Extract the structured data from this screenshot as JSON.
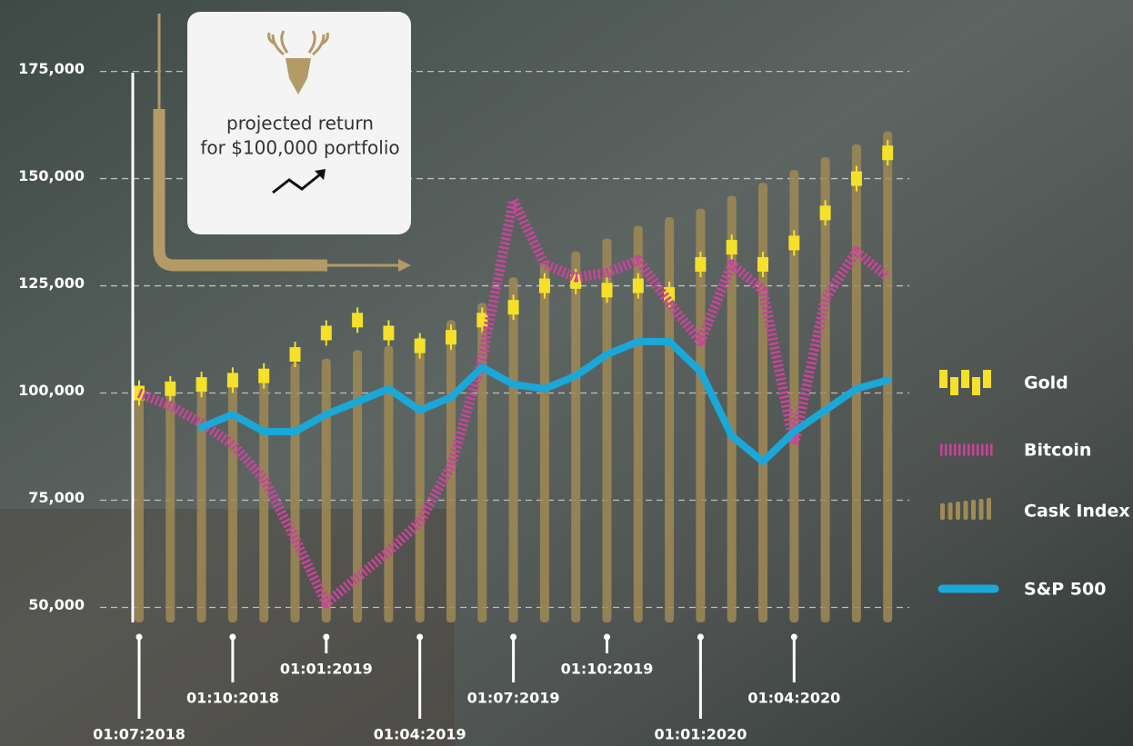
{
  "chart_data": {
    "type": "combo",
    "annotation": [
      "projected return",
      "for $100,000 portfolio"
    ],
    "categories": [
      "01:07:2018",
      null,
      null,
      "01:10:2018",
      null,
      null,
      "01:01:2019",
      null,
      null,
      "01:04:2019",
      null,
      null,
      "01:07:2019",
      null,
      null,
      "01:10:2019",
      null,
      null,
      "01:01:2020",
      null,
      null,
      "01:04:2020",
      null,
      null,
      null
    ],
    "ylim": [
      46500,
      180000
    ],
    "yticks": [
      {
        "value": 50000,
        "label": "50,000"
      },
      {
        "value": 75000,
        "label": "75,000"
      },
      {
        "value": 100000,
        "label": "100,000"
      },
      {
        "value": 125000,
        "label": "125,000"
      },
      {
        "value": 150000,
        "label": "150,000"
      },
      {
        "value": 175000,
        "label": "175,000"
      }
    ],
    "grid": true,
    "legend": "right",
    "series": [
      {
        "name": "Gold",
        "type": "candle",
        "color": "#f5e02a",
        "values": [
          100000,
          101000,
          102000,
          103000,
          104000,
          109000,
          114000,
          117000,
          114000,
          111000,
          113000,
          117000,
          120000,
          125000,
          126000,
          124000,
          125000,
          123000,
          130000,
          134000,
          130000,
          135000,
          142000,
          150000,
          156000
        ]
      },
      {
        "name": "Bitcoin",
        "type": "line",
        "dashed": true,
        "color": "#c9449a",
        "values": [
          100000,
          97000,
          93000,
          88000,
          80000,
          66000,
          51000,
          57000,
          63000,
          70000,
          83000,
          108000,
          145000,
          130000,
          127000,
          128000,
          131000,
          121000,
          112000,
          130000,
          124000,
          88000,
          122000,
          133000,
          127000
        ]
      },
      {
        "name": "Cask Index",
        "type": "bar",
        "color": "#a08a55",
        "values": [
          100000,
          102000,
          103000,
          104000,
          105000,
          107000,
          108000,
          110000,
          111000,
          113000,
          117000,
          121000,
          127000,
          130000,
          133000,
          136000,
          139000,
          141000,
          143000,
          146000,
          149000,
          152000,
          155000,
          158000,
          161000
        ]
      },
      {
        "name": "S&P 500",
        "type": "line",
        "dashed": false,
        "color": "#1aa8d8",
        "values": [
          null,
          null,
          92000,
          95000,
          91000,
          91000,
          95000,
          98000,
          101000,
          96000,
          99000,
          106000,
          102000,
          101000,
          104000,
          109000,
          112000,
          112000,
          105000,
          90000,
          84000,
          91000,
          96000,
          101000,
          103000
        ]
      }
    ]
  }
}
